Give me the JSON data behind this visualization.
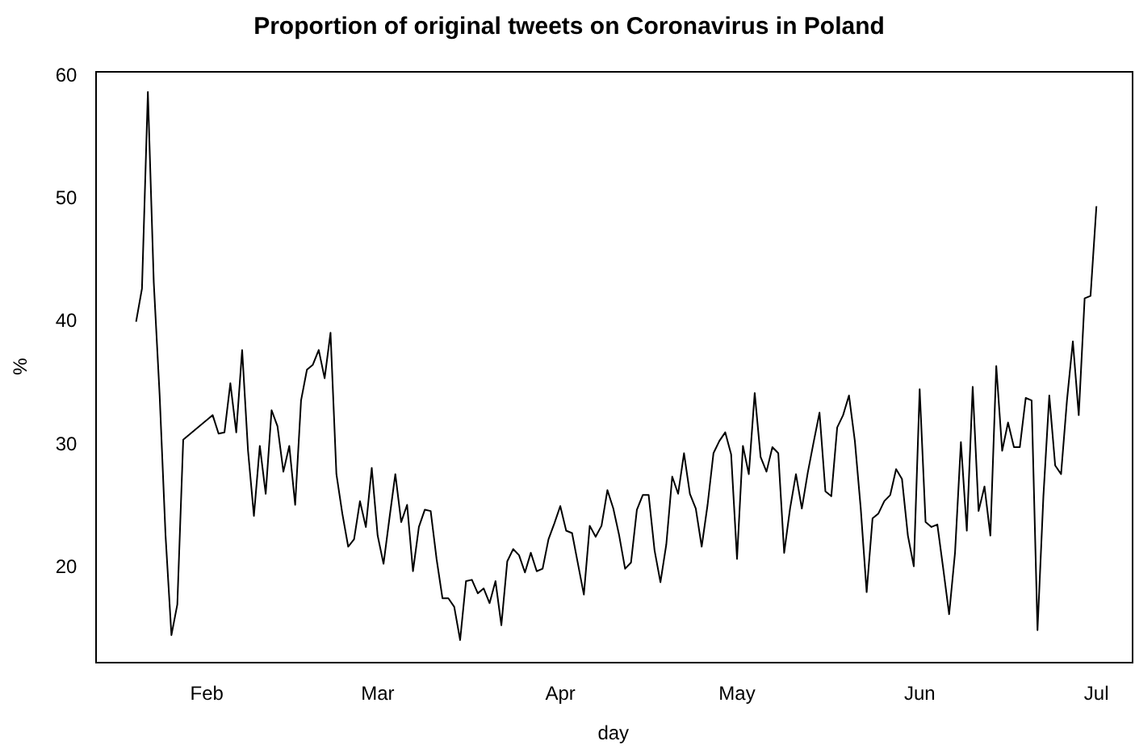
{
  "chart_data": {
    "type": "line",
    "title": "Proportion of original tweets on Coronavirus in Poland",
    "xlabel": "day",
    "ylabel": "%",
    "color": "#000000",
    "x": [
      "--01-20",
      "--01-21",
      "--01-22",
      "--01-23",
      "--01-24",
      "--01-25",
      "--01-26",
      "--01-27",
      "--01-28",
      "--02-02",
      "--02-03",
      "--02-04",
      "--02-05",
      "--02-06",
      "--02-07",
      "--02-08",
      "--02-09",
      "--02-10",
      "--02-11",
      "--02-12",
      "--02-13",
      "--02-14",
      "--02-15",
      "--02-16",
      "--02-17",
      "--02-18",
      "--02-19",
      "--02-20",
      "--02-21",
      "--02-22",
      "--02-23",
      "--02-24",
      "--02-25",
      "--02-26",
      "--02-27",
      "--02-28",
      "--02-29",
      "--03-01",
      "--03-02",
      "--03-03",
      "--03-04",
      "--03-05",
      "--03-06",
      "--03-07",
      "--03-08",
      "--03-09",
      "--03-10",
      "--03-11",
      "--03-12",
      "--03-13",
      "--03-14",
      "--03-15",
      "--03-16",
      "--03-17",
      "--03-18",
      "--03-19",
      "--03-20",
      "--03-21",
      "--03-22",
      "--03-23",
      "--03-24",
      "--03-25",
      "--03-26",
      "--03-27",
      "--03-28",
      "--03-29",
      "--03-30",
      "--03-31",
      "--04-01",
      "--04-02",
      "--04-03",
      "--04-04",
      "--04-05",
      "--04-06",
      "--04-07",
      "--04-08",
      "--04-09",
      "--04-10",
      "--04-11",
      "--04-12",
      "--04-13",
      "--04-14",
      "--04-15",
      "--04-16",
      "--04-17",
      "--04-18",
      "--04-19",
      "--04-20",
      "--04-21",
      "--04-22",
      "--04-23",
      "--04-24",
      "--04-25",
      "--04-26",
      "--04-27",
      "--04-28",
      "--04-29",
      "--04-30",
      "--05-01",
      "--05-02",
      "--05-03",
      "--05-04",
      "--05-05",
      "--05-06",
      "--05-07",
      "--05-08",
      "--05-09",
      "--05-10",
      "--05-11",
      "--05-12",
      "--05-13",
      "--05-14",
      "--05-15",
      "--05-16",
      "--05-17",
      "--05-18",
      "--05-19",
      "--05-20",
      "--05-21",
      "--05-22",
      "--05-23",
      "--05-24",
      "--05-25",
      "--05-26",
      "--05-27",
      "--05-28",
      "--05-29",
      "--05-30",
      "--05-31",
      "--06-01",
      "--06-02",
      "--06-03",
      "--06-04",
      "--06-05",
      "--06-06",
      "--06-07",
      "--06-08",
      "--06-09",
      "--06-10",
      "--06-11",
      "--06-12",
      "--06-13",
      "--06-14",
      "--06-15",
      "--06-16",
      "--06-17",
      "--06-18",
      "--06-19",
      "--06-20",
      "--06-21",
      "--06-22",
      "--06-23",
      "--06-24",
      "--06-25",
      "--06-26",
      "--06-27",
      "--06-28",
      "--06-29",
      "--06-30",
      "--07-01"
    ],
    "values": [
      40.0,
      42.7,
      58.7,
      43.2,
      34.0,
      22.6,
      14.5,
      17.0,
      30.4,
      32.4,
      30.9,
      31.0,
      35.0,
      31.0,
      37.7,
      29.5,
      24.2,
      29.9,
      26.0,
      32.8,
      31.5,
      27.8,
      29.9,
      25.1,
      33.6,
      36.1,
      36.5,
      37.7,
      35.4,
      39.1,
      27.6,
      24.4,
      21.7,
      22.3,
      25.4,
      23.3,
      28.1,
      22.6,
      20.3,
      24.0,
      27.6,
      23.7,
      25.1,
      19.7,
      23.3,
      24.7,
      24.6,
      20.7,
      17.5,
      17.5,
      16.8,
      14.1,
      18.9,
      19.0,
      17.9,
      18.3,
      17.1,
      18.9,
      15.3,
      20.5,
      21.5,
      21.0,
      19.6,
      21.2,
      19.7,
      19.9,
      22.3,
      23.6,
      25.0,
      23.0,
      22.8,
      20.3,
      17.8,
      23.4,
      22.5,
      23.4,
      26.3,
      24.8,
      22.6,
      19.9,
      20.4,
      24.7,
      25.9,
      25.9,
      21.4,
      18.8,
      21.9,
      27.4,
      26.0,
      29.3,
      26.0,
      24.8,
      21.7,
      25.1,
      29.3,
      30.3,
      31.0,
      29.2,
      20.7,
      29.9,
      27.6,
      34.2,
      29.0,
      27.8,
      29.8,
      29.3,
      21.2,
      24.8,
      27.6,
      24.8,
      27.7,
      30.2,
      32.6,
      26.2,
      25.8,
      31.4,
      32.4,
      34.0,
      30.3,
      24.8,
      18.0,
      24.0,
      24.4,
      25.4,
      25.9,
      28.0,
      27.2,
      22.6,
      20.1,
      34.5,
      23.7,
      23.3,
      23.5,
      19.9,
      16.2,
      21.2,
      30.2,
      23.0,
      34.7,
      24.6,
      26.6,
      22.6,
      36.4,
      29.5,
      31.8,
      29.8,
      29.8,
      33.8,
      33.6,
      14.9,
      25.8,
      34.0,
      28.3,
      27.6,
      33.6,
      38.4,
      32.4,
      41.9,
      42.1,
      49.4
    ],
    "xlim": [
      "--01-13",
      "--07-07"
    ],
    "xticks": [
      {
        "value": "--02-01",
        "label": "Feb"
      },
      {
        "value": "--03-01",
        "label": "Mar"
      },
      {
        "value": "--04-01",
        "label": "Apr"
      },
      {
        "value": "--05-01",
        "label": "May"
      },
      {
        "value": "--06-01",
        "label": "Jun"
      },
      {
        "value": "--07-01",
        "label": "Jul"
      }
    ],
    "ylim": [
      12.3,
      60.4
    ],
    "yticks": [
      20,
      30,
      40,
      50,
      60
    ]
  }
}
